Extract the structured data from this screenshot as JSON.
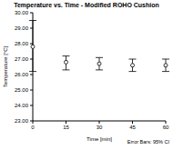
{
  "chart_data": {
    "type": "line",
    "title": "Temperature vs. Time - Modified ROHO Cushion",
    "x_label": "Time [min]",
    "y_label": "Temperature [°C]",
    "annotation": "Error Bars: 95% CI",
    "categories": [
      0,
      15,
      30,
      45,
      60
    ],
    "values": [
      27.8,
      26.8,
      26.7,
      26.6,
      26.6
    ],
    "ci_low": [
      26.2,
      26.3,
      26.3,
      26.2,
      26.2
    ],
    "ci_high": [
      29.5,
      27.2,
      27.1,
      27.0,
      27.0
    ],
    "color": "#000000",
    "marker": "circle",
    "line_style": "none",
    "ylim": [
      23,
      30
    ],
    "yticks": [
      {
        "value": 23,
        "label": "23.00"
      },
      {
        "value": 24,
        "label": "24.00"
      },
      {
        "value": 25,
        "label": "25.00"
      },
      {
        "value": 26,
        "label": "26.00"
      },
      {
        "value": 27,
        "label": "27.00"
      },
      {
        "value": 28,
        "label": "28.00"
      },
      {
        "value": 29,
        "label": "29.00"
      },
      {
        "value": 30,
        "label": "30.00"
      }
    ],
    "grid": false
  }
}
